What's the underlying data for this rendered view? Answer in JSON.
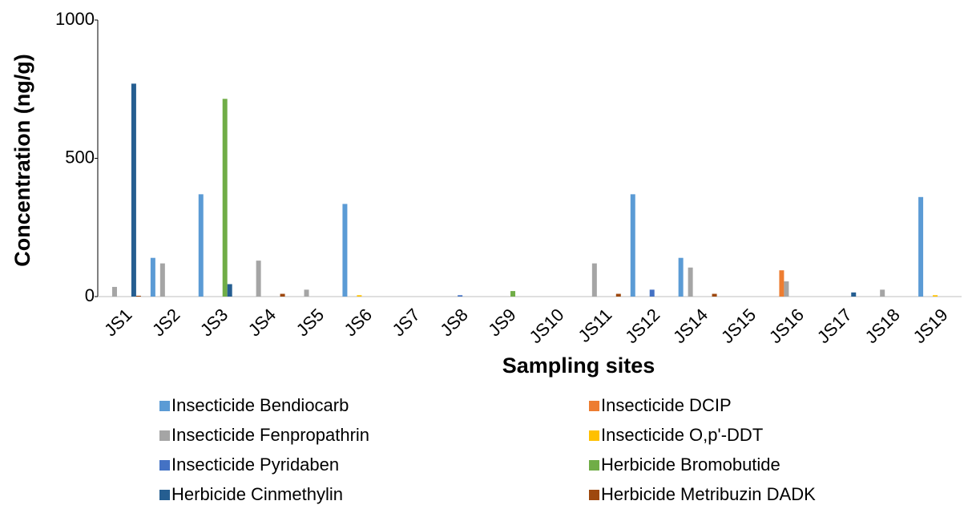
{
  "chart_data": {
    "type": "bar",
    "y_label": "Concentration (ng/g)",
    "x_label": "Sampling sites",
    "categories": [
      "JS1",
      "JS2",
      "JS3",
      "JS4",
      "JS5",
      "JS6",
      "JS7",
      "JS8",
      "JS9",
      "JS10",
      "JS11",
      "JS12",
      "JS14",
      "JS15",
      "JS16",
      "JS17",
      "JS18",
      "JS19"
    ],
    "series": [
      {
        "name": "Insecticide Bendiocarb",
        "color": "#5b9bd5",
        "values": [
          0,
          140,
          370,
          0,
          0,
          335,
          0,
          0,
          0,
          0,
          0,
          370,
          140,
          0,
          0,
          0,
          0,
          360
        ]
      },
      {
        "name": "Insecticide DCIP",
        "color": "#ed7d31",
        "values": [
          0,
          0,
          0,
          0,
          0,
          0,
          0,
          0,
          0,
          0,
          0,
          0,
          0,
          0,
          95,
          0,
          0,
          0
        ]
      },
      {
        "name": "Insecticide Fenpropathrin",
        "color": "#a5a5a5",
        "values": [
          35,
          120,
          0,
          130,
          25,
          0,
          0,
          0,
          0,
          0,
          120,
          0,
          105,
          0,
          55,
          0,
          25,
          0
        ]
      },
      {
        "name": "Insecticide O,p'-DDT",
        "color": "#ffc000",
        "values": [
          0,
          0,
          0,
          0,
          0,
          5,
          0,
          0,
          0,
          0,
          0,
          0,
          0,
          0,
          0,
          0,
          0,
          5
        ]
      },
      {
        "name": "Insecticide Pyridaben",
        "color": "#4472c4",
        "values": [
          0,
          0,
          0,
          0,
          0,
          0,
          0,
          5,
          0,
          0,
          0,
          25,
          0,
          0,
          0,
          0,
          0,
          0
        ]
      },
      {
        "name": "Herbicide Bromobutide",
        "color": "#70ad47",
        "values": [
          0,
          0,
          715,
          0,
          0,
          0,
          0,
          0,
          20,
          0,
          0,
          0,
          0,
          0,
          0,
          0,
          0,
          0
        ]
      },
      {
        "name": "Herbicide Cinmethylin",
        "color": "#255e91",
        "values": [
          770,
          0,
          45,
          0,
          0,
          0,
          0,
          0,
          0,
          0,
          0,
          0,
          0,
          0,
          0,
          15,
          0,
          0
        ]
      },
      {
        "name": "Herbicide Metribuzin DADK",
        "color": "#9e480e",
        "values": [
          3,
          0,
          0,
          10,
          0,
          0,
          0,
          0,
          0,
          0,
          10,
          0,
          10,
          0,
          0,
          0,
          0,
          0
        ]
      }
    ],
    "ylim": [
      0,
      1000
    ],
    "yticks": [
      0,
      500,
      1000
    ]
  }
}
